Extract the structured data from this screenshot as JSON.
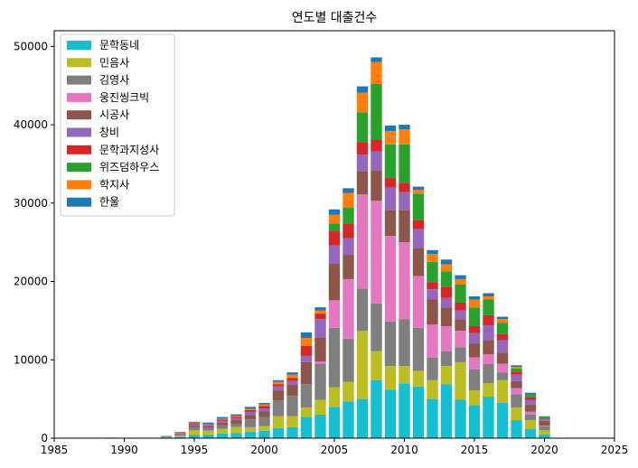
{
  "chart_data": {
    "type": "bar",
    "stacked": true,
    "title": "연도별 대출건수",
    "xlabel": "",
    "ylabel": "",
    "xlim": [
      1985,
      2025
    ],
    "ylim": [
      0,
      52000
    ],
    "xticks": [
      1985,
      1990,
      1995,
      2000,
      2005,
      2010,
      2015,
      2020,
      2025
    ],
    "yticks": [
      0,
      10000,
      20000,
      30000,
      40000,
      50000
    ],
    "grid": false,
    "legend_position": "top-left",
    "x": [
      1989,
      1990,
      1991,
      1992,
      1993,
      1994,
      1995,
      1996,
      1997,
      1998,
      1999,
      2000,
      2001,
      2002,
      2003,
      2004,
      2005,
      2006,
      2007,
      2008,
      2009,
      2010,
      2011,
      2012,
      2013,
      2014,
      2015,
      2016,
      2017,
      2018,
      2019,
      2020,
      2021
    ],
    "series": [
      {
        "name": "문학동네",
        "color": "#17becf",
        "values": [
          0,
          10,
          0,
          0,
          40,
          150,
          400,
          450,
          600,
          650,
          800,
          950,
          1300,
          1400,
          2700,
          3000,
          4000,
          4700,
          5000,
          7400,
          6200,
          7000,
          6600,
          5000,
          6900,
          4900,
          4200,
          5300,
          4500,
          2300,
          1200,
          500,
          0
        ]
      },
      {
        "name": "민음사",
        "color": "#bcbd22",
        "values": [
          0,
          0,
          0,
          0,
          50,
          150,
          600,
          500,
          600,
          800,
          600,
          600,
          1500,
          1400,
          1200,
          1900,
          2500,
          2500,
          8700,
          3700,
          3000,
          2200,
          2000,
          2400,
          2300,
          4800,
          1900,
          1700,
          2900,
          1600,
          1100,
          500,
          0
        ]
      },
      {
        "name": "김영사",
        "color": "#7f7f7f",
        "values": [
          50,
          40,
          20,
          0,
          50,
          150,
          350,
          350,
          450,
          400,
          1000,
          1150,
          2000,
          2600,
          3000,
          4600,
          7600,
          5500,
          5400,
          6100,
          5700,
          6000,
          5500,
          2900,
          1900,
          1900,
          2700,
          2500,
          1000,
          1700,
          700,
          500,
          30
        ]
      },
      {
        "name": "웅진씽크빅",
        "color": "#e377c2",
        "values": [
          0,
          0,
          0,
          0,
          0,
          0,
          0,
          0,
          0,
          0,
          0,
          0,
          0,
          0,
          0,
          300,
          3500,
          7600,
          12000,
          13100,
          10900,
          9800,
          6600,
          4200,
          3200,
          2100,
          1500,
          1200,
          1100,
          800,
          400,
          100,
          0
        ]
      },
      {
        "name": "시공사",
        "color": "#8c564b",
        "values": [
          20,
          0,
          0,
          0,
          50,
          100,
          250,
          250,
          350,
          450,
          550,
          750,
          1300,
          1400,
          2800,
          3000,
          4700,
          3100,
          3000,
          3900,
          3300,
          4100,
          3600,
          3200,
          2400,
          1500,
          1800,
          1800,
          1400,
          900,
          900,
          600,
          0
        ]
      },
      {
        "name": "창비",
        "color": "#9467bd",
        "values": [
          0,
          0,
          0,
          0,
          50,
          100,
          150,
          150,
          250,
          250,
          400,
          350,
          500,
          500,
          800,
          2400,
          2300,
          2100,
          2100,
          2400,
          2900,
          2300,
          2400,
          1300,
          1200,
          1100,
          1300,
          1900,
          1600,
          800,
          600,
          200,
          0
        ]
      },
      {
        "name": "문학과지성사",
        "color": "#d62728",
        "values": [
          0,
          0,
          0,
          0,
          0,
          0,
          150,
          100,
          150,
          200,
          250,
          300,
          300,
          400,
          1300,
          700,
          1800,
          1900,
          1600,
          1500,
          1200,
          1200,
          1100,
          900,
          1400,
          1000,
          900,
          1300,
          800,
          400,
          300,
          100,
          0
        ]
      },
      {
        "name": "위즈덤하우스",
        "color": "#2ca02c",
        "values": [
          0,
          0,
          0,
          0,
          0,
          0,
          0,
          0,
          0,
          0,
          0,
          0,
          0,
          0,
          0,
          0,
          1000,
          2000,
          3800,
          7100,
          4300,
          4900,
          3400,
          2600,
          2000,
          2300,
          2400,
          2000,
          1400,
          400,
          400,
          200,
          0
        ]
      },
      {
        "name": "학지사",
        "color": "#ff7f0e",
        "values": [
          0,
          0,
          0,
          0,
          0,
          100,
          100,
          50,
          100,
          100,
          150,
          200,
          300,
          400,
          1000,
          400,
          1100,
          1900,
          2500,
          2800,
          1700,
          1900,
          500,
          1000,
          900,
          700,
          1000,
          400,
          500,
          200,
          0,
          0,
          0
        ]
      },
      {
        "name": "한울",
        "color": "#1f77b4",
        "values": [
          0,
          0,
          0,
          0,
          50,
          50,
          100,
          150,
          200,
          200,
          250,
          200,
          200,
          300,
          700,
          400,
          700,
          600,
          800,
          600,
          700,
          600,
          400,
          500,
          600,
          500,
          400,
          400,
          300,
          200,
          200,
          100,
          0
        ]
      }
    ]
  }
}
